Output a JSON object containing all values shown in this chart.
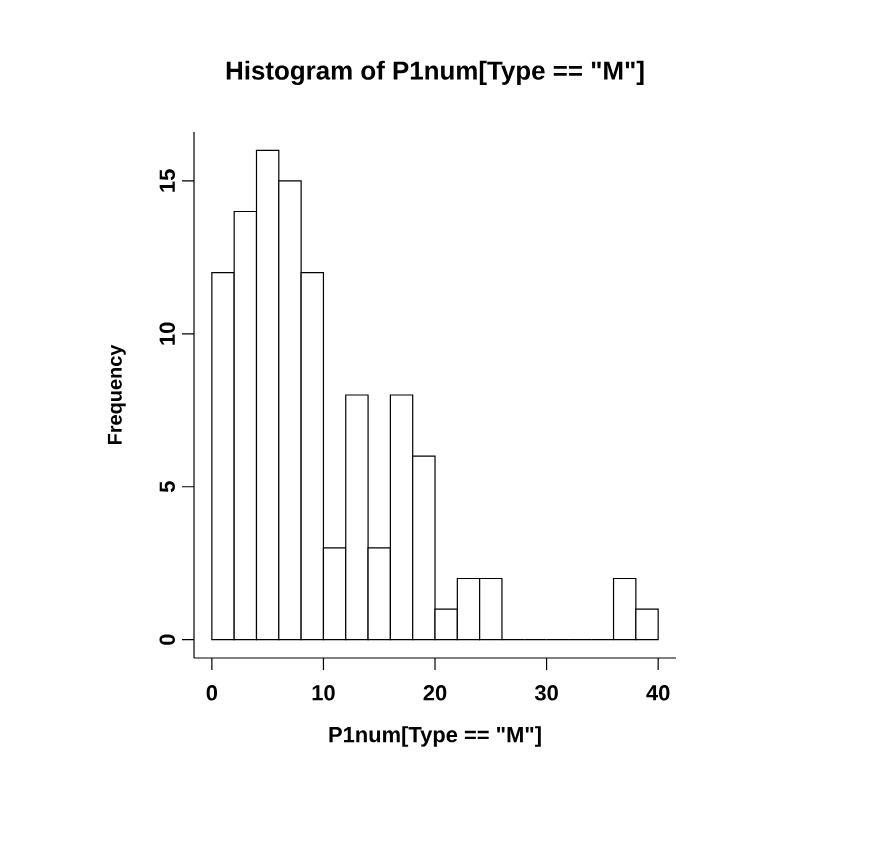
{
  "chart_data": {
    "type": "histogram",
    "title": "Histogram of P1num[Type == \"M\"]",
    "xlabel": "P1num[Type == \"M\"]",
    "ylabel": "Frequency",
    "bins": [
      0,
      2,
      4,
      6,
      8,
      10,
      12,
      14,
      16,
      18,
      20,
      22,
      24,
      26,
      28,
      30,
      32,
      34,
      36,
      38,
      40
    ],
    "values": [
      12,
      14,
      16,
      15,
      12,
      3,
      8,
      3,
      8,
      6,
      1,
      2,
      2,
      0,
      0,
      0,
      0,
      0,
      2,
      1
    ],
    "xlim": [
      -1.6,
      41.6
    ],
    "ylim": [
      -0.6,
      16.6
    ],
    "xticks": [
      0,
      10,
      20,
      30,
      40
    ],
    "yticks": [
      0,
      5,
      10,
      15
    ]
  }
}
